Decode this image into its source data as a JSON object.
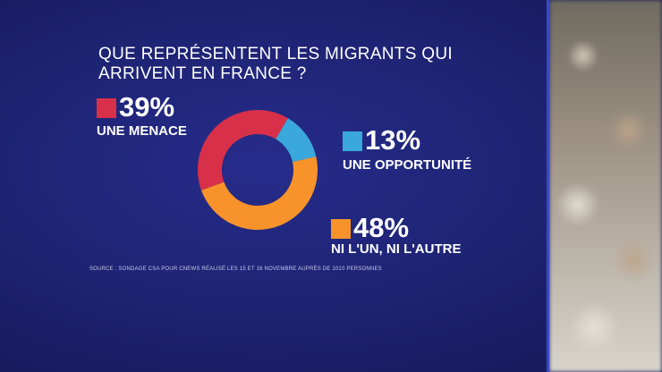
{
  "chart_data": {
    "type": "donut",
    "title": "QUE REPRÉSENTENT LES MIGRANTS QUI ARRIVENT EN FRANCE ?",
    "categories": [
      "UNE MENACE",
      "UNE OPPORTUNITÉ",
      "NI L'UN, NI L'AUTRE"
    ],
    "values": [
      39,
      13,
      48
    ],
    "value_labels": [
      "39%",
      "13%",
      "48%"
    ],
    "colors": [
      "#d9304a",
      "#3aa8dc",
      "#f7932a"
    ],
    "source": "SOURCE : SONDAGE CSA POUR CNEWS RÉALISÉ LES 15 ET 16 NOVEMBRE AUPRÈS DE 1010 PERSONNES"
  }
}
